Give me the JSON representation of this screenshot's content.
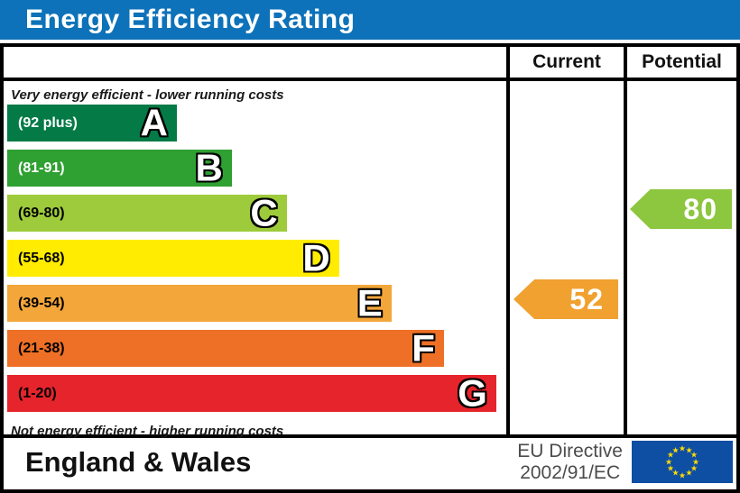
{
  "title": {
    "text": "Energy Efficiency Rating",
    "bg_color": "#0d72b9",
    "text_color": "#ffffff"
  },
  "columns": {
    "current": "Current",
    "potential": "Potential"
  },
  "scale": {
    "top_note": "Very energy efficient - lower running costs",
    "bottom_note": "Not energy efficient - higher running costs",
    "bands": [
      {
        "letter": "A",
        "range": "(92 plus)",
        "color": "#047a46",
        "text_color": "#ffffff",
        "width_pct": 34
      },
      {
        "letter": "B",
        "range": "(81-91)",
        "color": "#2fa032",
        "text_color": "#ffffff",
        "width_pct": 45
      },
      {
        "letter": "C",
        "range": "(69-80)",
        "color": "#9ecb3b",
        "text_color": "#000000",
        "width_pct": 56
      },
      {
        "letter": "D",
        "range": "(55-68)",
        "color": "#ffec00",
        "text_color": "#000000",
        "width_pct": 66.5
      },
      {
        "letter": "E",
        "range": "(39-54)",
        "color": "#f3a63a",
        "text_color": "#000000",
        "width_pct": 77
      },
      {
        "letter": "F",
        "range": "(21-38)",
        "color": "#ee7026",
        "text_color": "#000000",
        "width_pct": 87.5
      },
      {
        "letter": "G",
        "range": "(1-20)",
        "color": "#e6242c",
        "text_color": "#000000",
        "width_pct": 98
      }
    ]
  },
  "ratings": {
    "current": {
      "value": "52",
      "color": "#f0a12f",
      "band_index": 4
    },
    "potential": {
      "value": "80",
      "color": "#8dc63f",
      "band_index": 2
    }
  },
  "footer": {
    "region": "England & Wales",
    "directive_line1": "EU Directive",
    "directive_line2": "2002/91/EC",
    "flag": {
      "bg": "#0e4ea3",
      "star_color": "#ffdd00",
      "star_count": 12
    }
  },
  "chart_data": {
    "type": "bar",
    "title": "Energy Efficiency Rating",
    "categories": [
      "A (92 plus)",
      "B (81-91)",
      "C (69-80)",
      "D (55-68)",
      "E (39-54)",
      "F (21-38)",
      "G (1-20)"
    ],
    "band_colors": [
      "#047a46",
      "#2fa032",
      "#9ecb3b",
      "#ffec00",
      "#f3a63a",
      "#ee7026",
      "#e6242c"
    ],
    "band_widths_pct": [
      34,
      45,
      56,
      66.5,
      77,
      87.5,
      98
    ],
    "series": [
      {
        "name": "Current",
        "values": [
          52
        ],
        "band": "E"
      },
      {
        "name": "Potential",
        "values": [
          80
        ],
        "band": "C"
      }
    ],
    "xlabel": "",
    "ylabel": "",
    "annotations": [
      "Very energy efficient - lower running costs",
      "Not energy efficient - higher running costs"
    ]
  }
}
